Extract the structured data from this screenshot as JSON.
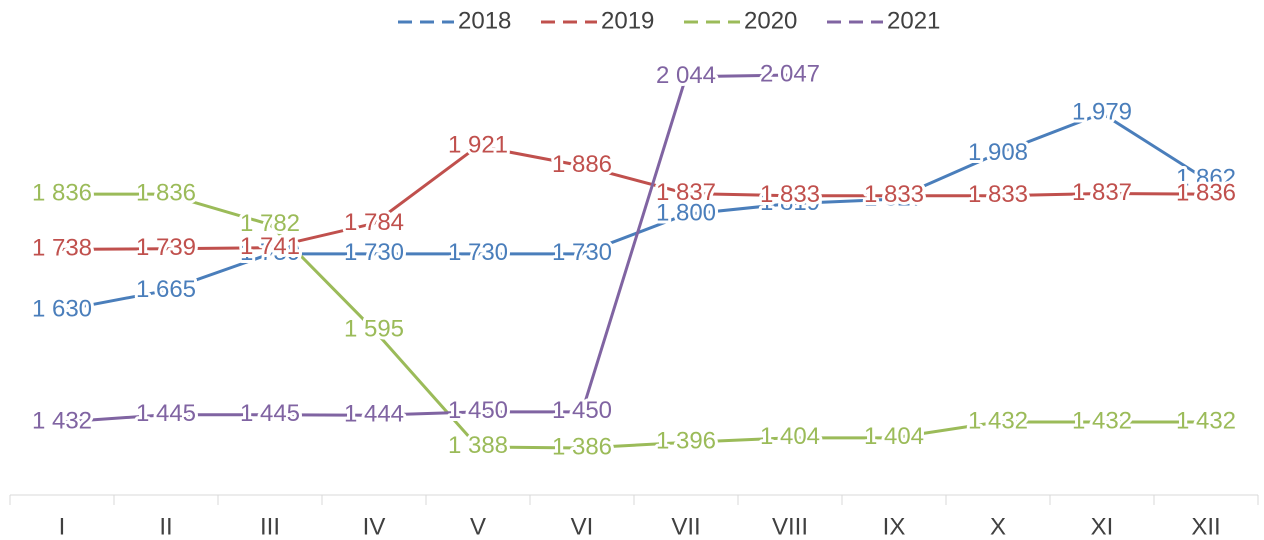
{
  "chart_data": {
    "type": "line",
    "categories": [
      "I",
      "II",
      "III",
      "IV",
      "V",
      "VI",
      "VII",
      "VIII",
      "IX",
      "X",
      "XI",
      "XII"
    ],
    "series": [
      {
        "name": "2018",
        "color": "#4a7ebb",
        "values": [
          1630,
          1665,
          1730,
          1730,
          1730,
          1730,
          1800,
          1819,
          1827,
          1908,
          1979,
          1862
        ],
        "value_labels": [
          "1 630",
          "1 665",
          "1 730",
          "1 730",
          "1 730",
          "1 730",
          "1 800",
          "1 819",
          "1 827",
          "1 908",
          "1 979",
          "1 862"
        ]
      },
      {
        "name": "2019",
        "color": "#c0504d",
        "values": [
          1738,
          1739,
          1741,
          1784,
          1921,
          1886,
          1837,
          1833,
          1833,
          1833,
          1837,
          1836
        ],
        "value_labels": [
          "1 738",
          "1 739",
          "1 741",
          "1 784",
          "1 921",
          "1 886",
          "1 837",
          "1 833",
          "1 833",
          "1 833",
          "1 837",
          "1 836"
        ]
      },
      {
        "name": "2020",
        "color": "#9bbb59",
        "values": [
          1836,
          1836,
          1782,
          1595,
          1388,
          1386,
          1396,
          1404,
          1404,
          1432,
          1432,
          1432
        ],
        "value_labels": [
          "1 836",
          "1 836",
          "1 782",
          "1 595",
          "1 388",
          "1 386",
          "1 396",
          "1 404",
          "1 404",
          "1 432",
          "1 432",
          "1 432"
        ]
      },
      {
        "name": "2021",
        "color": "#8064a2",
        "values": [
          1432,
          1445,
          1445,
          1444,
          1450,
          1450,
          2044,
          2047,
          null,
          null,
          null,
          null
        ],
        "value_labels": [
          "1 432",
          "1 445",
          "1 445",
          "1 444",
          "1 450",
          "1 450",
          "2 044",
          "2 047",
          null,
          null,
          null,
          null
        ]
      }
    ],
    "legend": "top"
  }
}
